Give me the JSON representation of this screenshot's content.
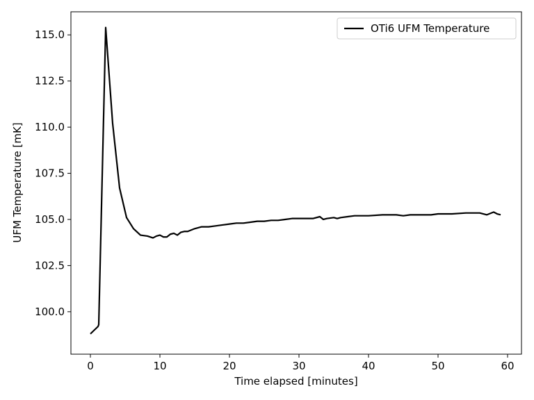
{
  "chart_data": {
    "type": "line",
    "title": "",
    "xlabel": "Time elapsed [minutes]",
    "ylabel": "UFM Temperature [mK]",
    "xlim": [
      -2.8,
      62.0
    ],
    "ylim": [
      97.7,
      116.25
    ],
    "xticks": [
      0,
      10,
      20,
      30,
      40,
      50,
      60
    ],
    "xtick_labels": [
      "0",
      "10",
      "20",
      "30",
      "40",
      "50",
      "60"
    ],
    "yticks": [
      100.0,
      102.5,
      105.0,
      107.5,
      110.0,
      112.5,
      115.0
    ],
    "ytick_labels": [
      "100.0",
      "102.5",
      "105.0",
      "107.5",
      "110.0",
      "112.5",
      "115.0"
    ],
    "grid": false,
    "legend_position": "top-right",
    "series": [
      {
        "name": "OTi6 UFM Temperature",
        "color": "#000000",
        "x": [
          0.0,
          1.1,
          1.2,
          2.2,
          3.2,
          4.2,
          5.2,
          6.2,
          7.2,
          8.2,
          9.0,
          9.5,
          10.0,
          10.5,
          11.0,
          11.5,
          12.0,
          12.5,
          13.0,
          13.5,
          14.0,
          15.0,
          16.0,
          17.0,
          18.0,
          19.0,
          20.0,
          21.0,
          22.0,
          23.0,
          24.0,
          25.0,
          26.0,
          27.0,
          28.0,
          29.0,
          30.0,
          31.0,
          32.0,
          33.0,
          33.5,
          34.0,
          35.0,
          35.5,
          36.0,
          37.0,
          38.0,
          39.0,
          40.0,
          42.0,
          44.0,
          45.0,
          46.0,
          47.0,
          48.0,
          49.0,
          50.0,
          52.0,
          54.0,
          56.0,
          57.0,
          58.0,
          58.5,
          59.0
        ],
        "y": [
          98.8,
          99.2,
          99.3,
          115.4,
          110.2,
          106.7,
          105.1,
          104.5,
          104.15,
          104.1,
          104.0,
          104.1,
          104.15,
          104.05,
          104.05,
          104.2,
          104.25,
          104.15,
          104.3,
          104.35,
          104.35,
          104.5,
          104.6,
          104.6,
          104.65,
          104.7,
          104.75,
          104.8,
          104.8,
          104.85,
          104.9,
          104.9,
          104.95,
          104.95,
          105.0,
          105.05,
          105.05,
          105.05,
          105.05,
          105.15,
          105.0,
          105.05,
          105.1,
          105.05,
          105.1,
          105.15,
          105.2,
          105.2,
          105.2,
          105.25,
          105.25,
          105.2,
          105.25,
          105.25,
          105.25,
          105.25,
          105.3,
          105.3,
          105.35,
          105.35,
          105.25,
          105.4,
          105.3,
          105.25
        ]
      }
    ]
  }
}
